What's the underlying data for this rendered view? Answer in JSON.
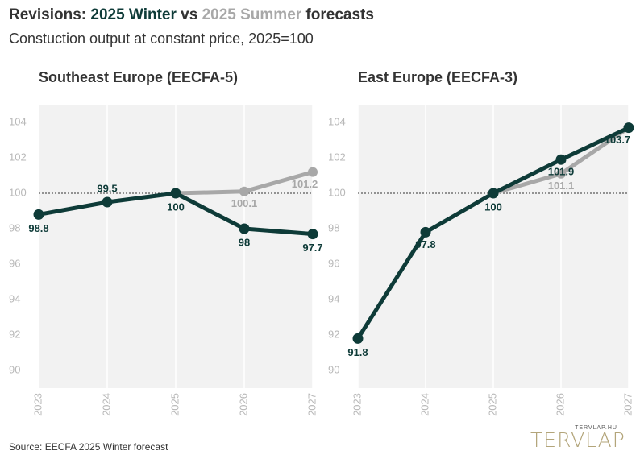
{
  "header": {
    "title_prefix": "Revisions: ",
    "title_winter": "2025 Winter",
    "title_vs": " vs ",
    "title_summer": "2025 Summer",
    "title_suffix": " forecasts",
    "subtitle": "Constuction output at constant price, 2025=100"
  },
  "colors": {
    "winter": "#0e3b38",
    "summer": "#a8a8a8",
    "plot_bg": "#f2f2f2",
    "text": "#333333"
  },
  "chart_data": [
    {
      "type": "line",
      "title": "Southeast Europe (EECFA-5)",
      "x": [
        "2023",
        "2024",
        "2025",
        "2026",
        "2027"
      ],
      "ylim": [
        89,
        105
      ],
      "yticks": [
        "90",
        "92",
        "94",
        "96",
        "98",
        "100",
        "102",
        "104"
      ],
      "reference_line": 100,
      "series": [
        {
          "name": "2025 Summer",
          "x": [
            "2025",
            "2026",
            "2027"
          ],
          "values": [
            100,
            100.1,
            101.2
          ],
          "labels": [
            "",
            "100.1",
            "101.2"
          ]
        },
        {
          "name": "2025 Winter",
          "x": [
            "2023",
            "2024",
            "2025",
            "2026",
            "2027"
          ],
          "values": [
            98.8,
            99.5,
            100,
            98,
            97.7
          ],
          "labels": [
            "98.8",
            "99.5",
            "100",
            "98",
            "97.7"
          ]
        }
      ],
      "grid": false
    },
    {
      "type": "line",
      "title": "East Europe (EECFA-3)",
      "x": [
        "2023",
        "2024",
        "2025",
        "2026",
        "2027"
      ],
      "ylim": [
        89,
        105
      ],
      "yticks": [
        "90",
        "92",
        "94",
        "96",
        "98",
        "100",
        "102",
        "104"
      ],
      "reference_line": 100,
      "series": [
        {
          "name": "2025 Summer",
          "x": [
            "2025",
            "2026",
            "2027"
          ],
          "values": [
            100,
            101.1,
            103.7
          ],
          "labels": [
            "",
            "101.1",
            ""
          ]
        },
        {
          "name": "2025 Winter",
          "x": [
            "2023",
            "2024",
            "2025",
            "2026",
            "2027"
          ],
          "values": [
            91.8,
            97.8,
            100,
            101.9,
            103.7
          ],
          "labels": [
            "91.8",
            "97.8",
            "100",
            "101.9",
            "103.7"
          ]
        }
      ],
      "grid": false
    }
  ],
  "footer": {
    "source": "Source: EECFA 2025 Winter forecast"
  },
  "logo": {
    "small_text": "TERVLAP.HU",
    "main_text": "TERVLAP"
  }
}
